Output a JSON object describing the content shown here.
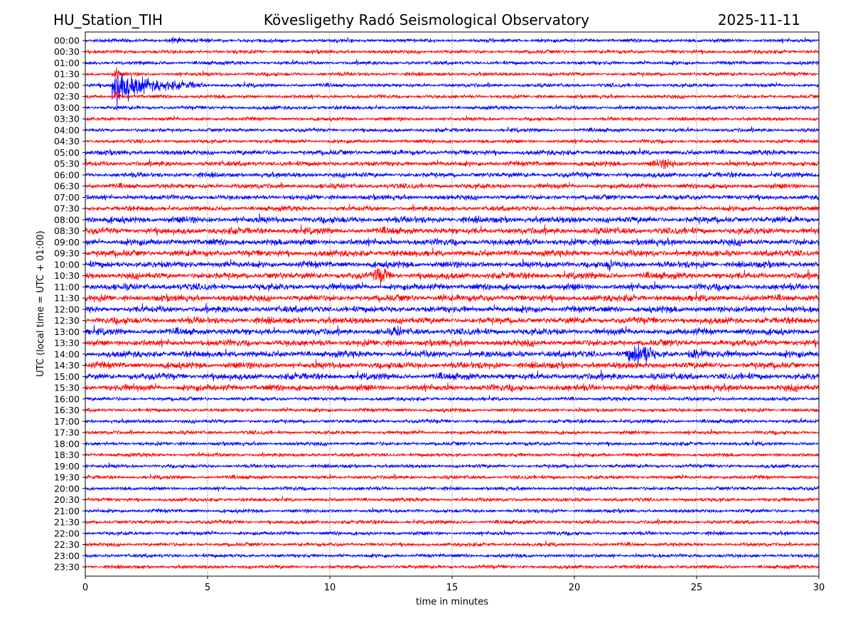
{
  "chart_data": {
    "type": "line",
    "title_left": "HU_Station_TIH",
    "title": "Kövesligethy Radó Seismological Observatory",
    "title_right": "2025-11-11",
    "xlabel": "time in minutes",
    "ylabel": "UTC (local time = UTC + 01:00)",
    "xlim": [
      0,
      30
    ],
    "xticks": [
      "0",
      "5",
      "10",
      "15",
      "20",
      "25",
      "30"
    ],
    "grid": "vertical dotted",
    "row_labels": [
      "00:00",
      "00:30",
      "01:00",
      "01:30",
      "02:00",
      "02:30",
      "03:00",
      "03:30",
      "04:00",
      "04:30",
      "05:00",
      "05:30",
      "06:00",
      "06:30",
      "07:00",
      "07:30",
      "08:00",
      "08:30",
      "09:00",
      "09:30",
      "10:00",
      "10:30",
      "11:00",
      "11:30",
      "12:00",
      "12:30",
      "13:00",
      "13:30",
      "14:00",
      "14:30",
      "15:00",
      "15:30",
      "16:00",
      "16:30",
      "17:00",
      "17:30",
      "18:00",
      "18:30",
      "19:00",
      "19:30",
      "20:00",
      "20:30",
      "21:00",
      "21:30",
      "22:00",
      "22:30",
      "23:00",
      "23:30"
    ],
    "trace_colors": [
      "#0000ff",
      "#ff0000"
    ],
    "events": [
      {
        "row": "02:00",
        "start_min": 1.1,
        "end_min": 4.8,
        "relative_amplitude": 1.0
      },
      {
        "row": "01:30",
        "start_min": 1.1,
        "end_min": 1.5,
        "relative_amplitude": 0.3
      },
      {
        "row": "02:30",
        "start_min": 1.1,
        "end_min": 1.5,
        "relative_amplitude": 0.25
      },
      {
        "row": "00:00",
        "start_min": 3.1,
        "end_min": 4.3,
        "relative_amplitude": 0.15
      },
      {
        "row": "05:30",
        "start_min": 22.8,
        "end_min": 24.6,
        "relative_amplitude": 0.25
      },
      {
        "row": "10:00",
        "start_min": 21.3,
        "end_min": 21.6,
        "relative_amplitude": 0.45
      },
      {
        "row": "10:30",
        "start_min": 11.6,
        "end_min": 12.6,
        "relative_amplitude": 0.45
      },
      {
        "row": "11:30",
        "start_min": 14.3,
        "end_min": 14.9,
        "relative_amplitude": 0.2
      },
      {
        "row": "13:00",
        "start_min": 12.4,
        "end_min": 13.1,
        "relative_amplitude": 0.3
      },
      {
        "row": "14:00",
        "start_min": 21.9,
        "end_min": 23.5,
        "relative_amplitude": 0.6
      },
      {
        "row": "14:00",
        "start_min": 24.4,
        "end_min": 25.7,
        "relative_amplitude": 0.3
      }
    ]
  }
}
